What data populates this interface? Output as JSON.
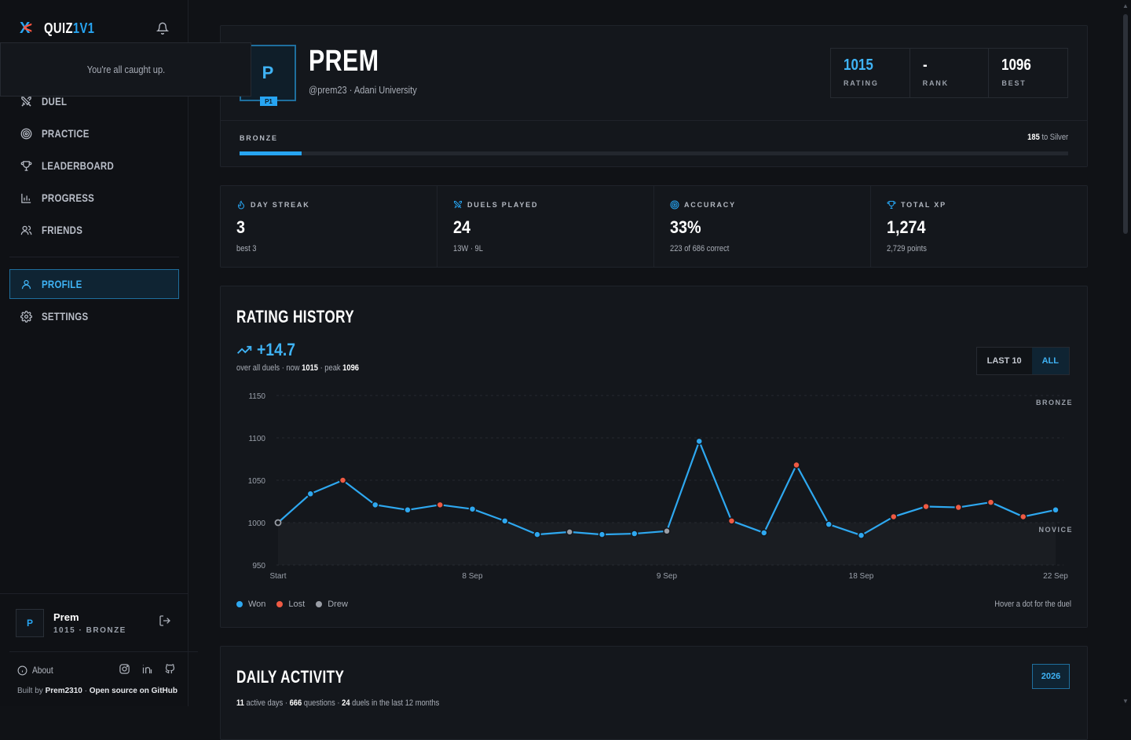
{
  "app": {
    "logo_primary": "QUIZ",
    "logo_accent": "1V1"
  },
  "notification": {
    "message": "You're all caught up."
  },
  "nav": {
    "items": [
      {
        "label": "DUEL",
        "icon": "swords-icon"
      },
      {
        "label": "PRACTICE",
        "icon": "target-icon"
      },
      {
        "label": "LEADERBOARD",
        "icon": "trophy-icon"
      },
      {
        "label": "PROGRESS",
        "icon": "bar-chart-icon"
      },
      {
        "label": "FRIENDS",
        "icon": "users-icon"
      }
    ],
    "profile_label": "PROFILE",
    "settings_label": "SETTINGS"
  },
  "user_card": {
    "initial": "P",
    "name": "Prem",
    "sub": "1015 · BRONZE"
  },
  "footer": {
    "about": "About",
    "built_prefix": "Built by",
    "built_author": "Prem2310",
    "built_sep": " · ",
    "built_link": "Open source on GitHub"
  },
  "profile": {
    "initial": "P",
    "badge": "P1",
    "name": "PREM",
    "handle": "@prem23 · Adani University",
    "stats": [
      {
        "value": "1015",
        "key": "RATING"
      },
      {
        "value": "-",
        "key": "RANK"
      },
      {
        "value": "1096",
        "key": "BEST"
      }
    ],
    "tier": "BRONZE",
    "to_next_num": "185",
    "to_next_text": "to Silver",
    "progress_fraction": 0.075
  },
  "kpis": [
    {
      "label": "DAY STREAK",
      "value": "3",
      "sub": "best 3",
      "icon": "flame-icon"
    },
    {
      "label": "DUELS PLAYED",
      "value": "24",
      "sub": "13W · 9L",
      "icon": "swords-icon"
    },
    {
      "label": "ACCURACY",
      "value": "33%",
      "sub": "223 of 686 correct",
      "icon": "target-icon"
    },
    {
      "label": "TOTAL XP",
      "value": "1,274",
      "sub": "2,729 points",
      "icon": "trophy-icon"
    }
  ],
  "rating_history": {
    "title": "RATING HISTORY",
    "delta": "+14.7",
    "sub_prefix": "over all duels · now",
    "now": "1015",
    "sub_mid": " · peak ",
    "peak": "1096",
    "toggle": [
      "LAST 10",
      "ALL"
    ],
    "legend": [
      "Won",
      "Lost",
      "Drew"
    ],
    "hint": "Hover a dot for the duel",
    "band_top": "BRONZE",
    "band_bottom": "NOVICE"
  },
  "chart_data": {
    "type": "line",
    "title": "RATING HISTORY",
    "xlabel": "",
    "ylabel": "",
    "ylim": [
      950,
      1150
    ],
    "yticks": [
      1150,
      1100,
      1050,
      1000,
      950
    ],
    "xtick_labels": [
      "Start",
      "8 Sep",
      "9 Sep",
      "18 Sep",
      "22 Sep"
    ],
    "xtick_index": [
      0,
      6,
      12,
      18,
      24
    ],
    "grid": true,
    "series": [
      {
        "name": "Rating",
        "values": [
          1000,
          1034,
          1050,
          1021,
          1015,
          1021,
          1016,
          1002,
          986,
          989,
          986,
          987,
          990,
          1096,
          1002,
          988,
          1068,
          998,
          985,
          1007,
          1019,
          1018,
          1024,
          1007,
          1015
        ],
        "outcomes": [
          "start",
          "won",
          "lost",
          "won",
          "won",
          "lost",
          "won",
          "won",
          "won",
          "drew",
          "won",
          "won",
          "drew",
          "won",
          "lost",
          "won",
          "lost",
          "won",
          "won",
          "lost",
          "lost",
          "lost",
          "lost",
          "lost",
          "won"
        ]
      }
    ],
    "colors": {
      "line": "#2ea8f0",
      "won": "#2ea8f0",
      "lost": "#ef5a43",
      "drew": "#9a9ea6",
      "start": "#9a9ea6"
    }
  },
  "activity": {
    "title": "DAILY ACTIVITY",
    "year": "2026",
    "active_days": "11",
    "active_days_label": " active days · ",
    "questions": "666",
    "questions_label": " questions · ",
    "duels": "24",
    "duels_label": " duels in the last 12 months"
  }
}
